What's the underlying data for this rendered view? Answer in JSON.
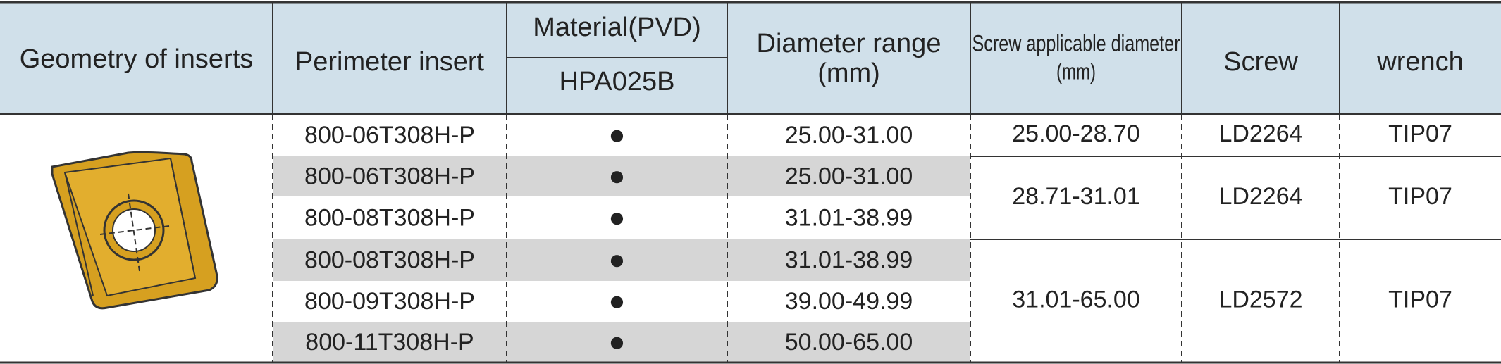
{
  "header": {
    "geometry": "Geometry of inserts",
    "perimeter": "Perimeter insert",
    "material": "Material(PVD)",
    "grade": "HPA025B",
    "diameter": [
      "Diameter range",
      "(mm)"
    ],
    "screw_diameter": [
      "Screw applicable diameter",
      "(mm)"
    ],
    "screw": "Screw",
    "wrench": "wrench"
  },
  "rows": [
    {
      "insert": "800-06T308H-P",
      "material": "●",
      "diameter": "25.00-31.00"
    },
    {
      "insert": "800-06T308H-P",
      "material": "●",
      "diameter": "25.00-31.00"
    },
    {
      "insert": "800-08T308H-P",
      "material": "●",
      "diameter": "31.01-38.99"
    },
    {
      "insert": "800-08T308H-P",
      "material": "●",
      "diameter": "31.01-38.99"
    },
    {
      "insert": "800-09T308H-P",
      "material": "●",
      "diameter": "39.00-49.99"
    },
    {
      "insert": "800-11T308H-P",
      "material": "●",
      "diameter": "50.00-65.00"
    }
  ],
  "screw_groups": [
    {
      "screw_diameter": "25.00-28.70",
      "screw": "LD2264",
      "wrench": "TIP07"
    },
    {
      "screw_diameter": "28.71-31.01",
      "screw": "LD2264",
      "wrench": "TIP07"
    },
    {
      "screw_diameter": "31.01-65.00",
      "screw": "LD2572",
      "wrench": "TIP07"
    }
  ]
}
